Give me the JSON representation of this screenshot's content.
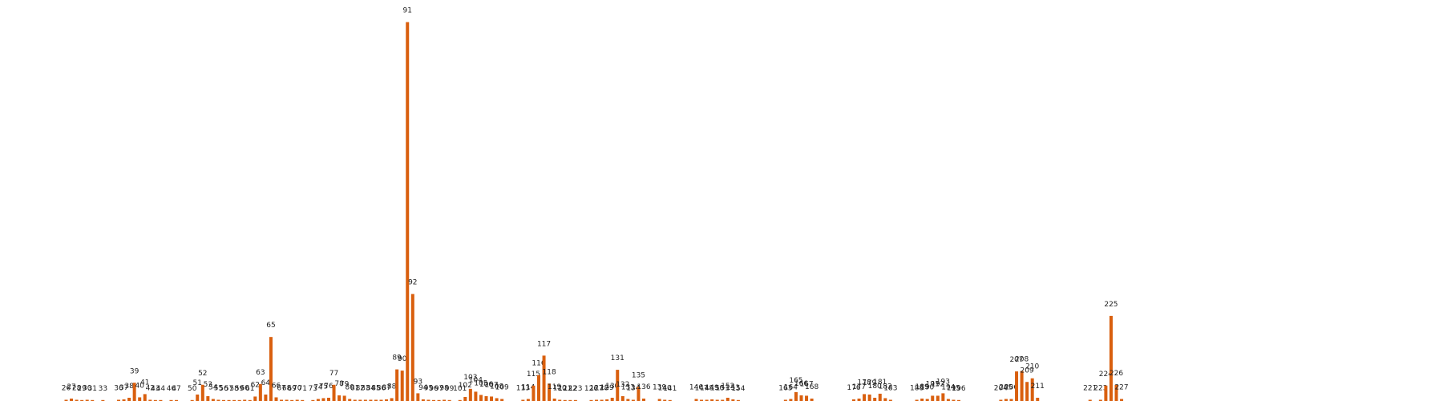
{
  "chart_data": {
    "type": "bar",
    "title": "",
    "xlabel": "",
    "ylabel": "",
    "bar_color": "#d95f0e",
    "ylim": [
      0,
      95
    ],
    "categories": [
      "26",
      "27",
      "28",
      "29",
      "30",
      "31",
      "33",
      "36",
      "37",
      "38",
      "39",
      "40",
      "41",
      "42",
      "43",
      "44",
      "46",
      "47",
      "50",
      "51",
      "52",
      "53",
      "54",
      "55",
      "56",
      "57",
      "58",
      "59",
      "60",
      "61",
      "62",
      "63",
      "64",
      "65",
      "66",
      "67",
      "68",
      "69",
      "70",
      "71",
      "73",
      "74",
      "75",
      "76",
      "77",
      "78",
      "79",
      "80",
      "81",
      "82",
      "83",
      "84",
      "85",
      "86",
      "87",
      "88",
      "89",
      "90",
      "91",
      "92",
      "93",
      "94",
      "95",
      "96",
      "97",
      "98",
      "99",
      "101",
      "102",
      "103",
      "104",
      "105",
      "106",
      "107",
      "108",
      "109",
      "113",
      "114",
      "115",
      "116",
      "117",
      "118",
      "119",
      "120",
      "121",
      "122",
      "123",
      "126",
      "127",
      "128",
      "129",
      "130",
      "131",
      "132",
      "133",
      "134",
      "135",
      "136",
      "139",
      "140",
      "141",
      "146",
      "147",
      "148",
      "149",
      "150",
      "151",
      "152",
      "153",
      "154",
      "163",
      "164",
      "165",
      "166",
      "167",
      "168",
      "176",
      "177",
      "178",
      "179",
      "180",
      "181",
      "182",
      "183",
      "188",
      "189",
      "190",
      "191",
      "192",
      "193",
      "194",
      "195",
      "196",
      "204",
      "205",
      "206",
      "207",
      "208",
      "209",
      "210",
      "211",
      "221",
      "223",
      "224",
      "225",
      "226",
      "227"
    ],
    "values": [
      0.3,
      0.6,
      0.3,
      0.2,
      0.3,
      0.2,
      0.2,
      0.3,
      0.4,
      0.8,
      4.5,
      0.9,
      1.7,
      0.3,
      0.2,
      0.2,
      0.2,
      0.2,
      0.2,
      1.6,
      4.0,
      1.2,
      0.5,
      0.3,
      0.2,
      0.2,
      0.2,
      0.2,
      0.3,
      0.2,
      1.1,
      4.2,
      1.6,
      15.8,
      0.9,
      0.3,
      0.3,
      0.2,
      0.3,
      0.2,
      0.2,
      0.5,
      0.7,
      0.8,
      4.0,
      1.4,
      1.3,
      0.5,
      0.3,
      0.3,
      0.3,
      0.3,
      0.3,
      0.3,
      0.4,
      0.7,
      7.8,
      7.5,
      93.5,
      26.4,
      1.9,
      0.4,
      0.3,
      0.2,
      0.2,
      0.3,
      0.2,
      0.2,
      1.0,
      3.0,
      2.3,
      1.5,
      1.2,
      1.1,
      0.7,
      0.5,
      0.3,
      0.5,
      3.8,
      6.4,
      11.2,
      4.3,
      0.6,
      0.3,
      0.2,
      0.2,
      0.2,
      0.2,
      0.3,
      0.3,
      0.4,
      0.8,
      7.7,
      1.2,
      0.5,
      0.3,
      3.5,
      0.6,
      0.5,
      0.3,
      0.2,
      0.5,
      0.3,
      0.3,
      0.4,
      0.3,
      0.3,
      0.8,
      0.4,
      0.2,
      0.3,
      0.5,
      2.2,
      1.4,
      1.3,
      0.6,
      0.4,
      0.6,
      1.7,
      1.6,
      0.8,
      1.8,
      0.7,
      0.3,
      0.3,
      0.6,
      0.5,
      1.3,
      1.3,
      1.9,
      0.5,
      0.3,
      0.2,
      0.3,
      0.5,
      0.5,
      7.3,
      7.4,
      4.7,
      5.6,
      0.8,
      0.3,
      0.3,
      3.8,
      21.0,
      4.0,
      0.5
    ]
  }
}
